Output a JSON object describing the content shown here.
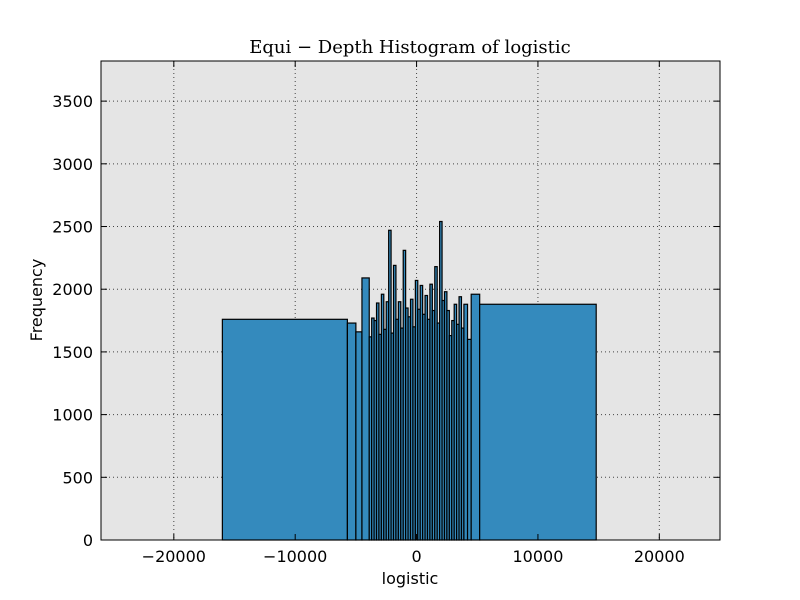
{
  "chart_data": {
    "type": "bar",
    "title": "Equi − Depth Histogram of logistic",
    "xlabel": "logistic",
    "ylabel": "Frequency",
    "xlim": [
      -26000,
      25000
    ],
    "ylim": [
      0,
      3820
    ],
    "xticks": [
      -20000,
      -10000,
      0,
      10000,
      20000
    ],
    "xtick_labels": [
      "−20000",
      "−10000",
      "0",
      "10000",
      "20000"
    ],
    "yticks": [
      0,
      500,
      1000,
      1500,
      2000,
      2500,
      3000,
      3500
    ],
    "ytick_labels": [
      "0",
      "500",
      "1000",
      "1500",
      "2000",
      "2500",
      "3000",
      "3500"
    ],
    "grid": true,
    "bar_color": "#348abd",
    "plot_bg": "#e5e5e5",
    "bins": [
      {
        "x0": -16000,
        "x1": -5700,
        "value": 1760
      },
      {
        "x0": -5700,
        "x1": -5000,
        "value": 1730
      },
      {
        "x0": -5000,
        "x1": -4500,
        "value": 1660
      },
      {
        "x0": -4500,
        "x1": -3900,
        "value": 2090
      },
      {
        "x0": -3900,
        "x1": -3700,
        "value": 1620
      },
      {
        "x0": -3700,
        "x1": -3500,
        "value": 1770
      },
      {
        "x0": -3500,
        "x1": -3300,
        "value": 1750
      },
      {
        "x0": -3300,
        "x1": -3100,
        "value": 1890
      },
      {
        "x0": -3100,
        "x1": -2900,
        "value": 1640
      },
      {
        "x0": -2900,
        "x1": -2700,
        "value": 1960
      },
      {
        "x0": -2700,
        "x1": -2500,
        "value": 1680
      },
      {
        "x0": -2500,
        "x1": -2300,
        "value": 1900
      },
      {
        "x0": -2300,
        "x1": -2100,
        "value": 2470
      },
      {
        "x0": -2100,
        "x1": -1900,
        "value": 1650
      },
      {
        "x0": -1900,
        "x1": -1700,
        "value": 2190
      },
      {
        "x0": -1700,
        "x1": -1500,
        "value": 1760
      },
      {
        "x0": -1500,
        "x1": -1300,
        "value": 1900
      },
      {
        "x0": -1300,
        "x1": -1100,
        "value": 1690
      },
      {
        "x0": -1100,
        "x1": -900,
        "value": 2310
      },
      {
        "x0": -900,
        "x1": -700,
        "value": 1850
      },
      {
        "x0": -700,
        "x1": -500,
        "value": 1780
      },
      {
        "x0": -500,
        "x1": -300,
        "value": 1920
      },
      {
        "x0": -300,
        "x1": -100,
        "value": 1700
      },
      {
        "x0": -100,
        "x1": 100,
        "value": 2070
      },
      {
        "x0": 100,
        "x1": 300,
        "value": 1840
      },
      {
        "x0": 300,
        "x1": 500,
        "value": 2030
      },
      {
        "x0": 500,
        "x1": 700,
        "value": 1800
      },
      {
        "x0": 700,
        "x1": 900,
        "value": 1950
      },
      {
        "x0": 900,
        "x1": 1100,
        "value": 1760
      },
      {
        "x0": 1100,
        "x1": 1300,
        "value": 2040
      },
      {
        "x0": 1300,
        "x1": 1500,
        "value": 1830
      },
      {
        "x0": 1500,
        "x1": 1700,
        "value": 2180
      },
      {
        "x0": 1700,
        "x1": 1900,
        "value": 1730
      },
      {
        "x0": 1900,
        "x1": 2100,
        "value": 2540
      },
      {
        "x0": 2100,
        "x1": 2300,
        "value": 1910
      },
      {
        "x0": 2300,
        "x1": 2500,
        "value": 1980
      },
      {
        "x0": 2500,
        "x1": 2700,
        "value": 1830
      },
      {
        "x0": 2700,
        "x1": 2900,
        "value": 1630
      },
      {
        "x0": 2900,
        "x1": 3100,
        "value": 1750
      },
      {
        "x0": 3100,
        "x1": 3300,
        "value": 1880
      },
      {
        "x0": 3300,
        "x1": 3500,
        "value": 1720
      },
      {
        "x0": 3500,
        "x1": 3700,
        "value": 1940
      },
      {
        "x0": 3700,
        "x1": 3900,
        "value": 1690
      },
      {
        "x0": 3900,
        "x1": 4200,
        "value": 1880
      },
      {
        "x0": 4200,
        "x1": 4500,
        "value": 1600
      },
      {
        "x0": 4500,
        "x1": 5200,
        "value": 1960
      },
      {
        "x0": 5200,
        "x1": 14800,
        "value": 1880
      }
    ]
  }
}
